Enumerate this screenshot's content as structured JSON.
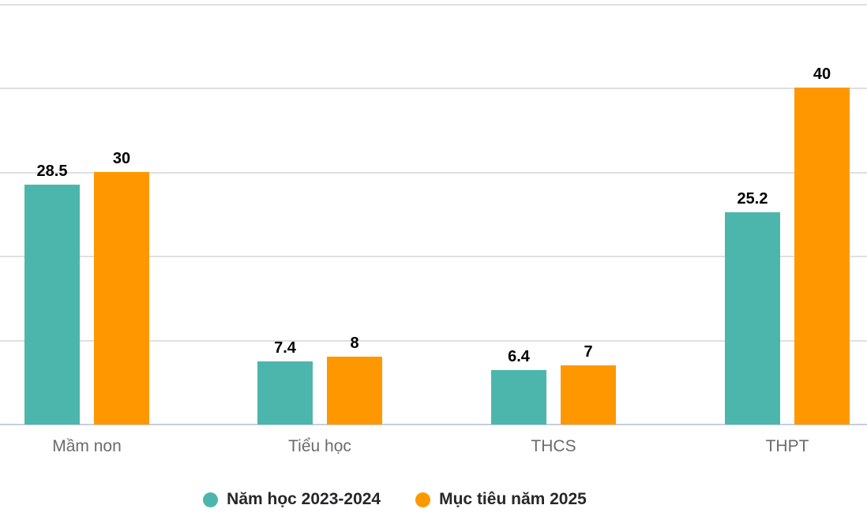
{
  "chart_data": {
    "type": "bar",
    "categories": [
      "Mầm non",
      "Tiểu học",
      "THCS",
      "THPT"
    ],
    "series": [
      {
        "name": "Năm học 2023-2024",
        "color": "#4db6ac",
        "values": [
          28.5,
          7.4,
          6.4,
          25.2
        ]
      },
      {
        "name": "Mục tiêu năm 2025",
        "color": "#ff9800",
        "values": [
          30,
          8,
          7,
          40
        ]
      }
    ],
    "title": "",
    "xlabel": "",
    "ylabel": "",
    "ylim": [
      0,
      50
    ],
    "grid": true,
    "gridline_step": 10,
    "y_axis_tick_labels_visible": false,
    "value_labels_visible": true,
    "legend_position": "bottom"
  },
  "colors": {
    "background": "#ffffff",
    "gridline": "#e0e0e0",
    "baseline": "#c5cfe2",
    "value_label": "#000000",
    "category_label": "#6b6b6b",
    "legend_text": "#26262b"
  }
}
